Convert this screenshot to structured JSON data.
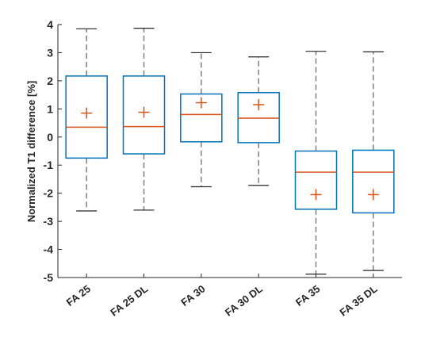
{
  "chart_data": {
    "type": "boxplot",
    "title": "",
    "xlabel": "",
    "ylabel": "Normalized T1 difference [%]",
    "ylim": [
      -5,
      4
    ],
    "yticks": [
      -5,
      -4,
      -3,
      -2,
      -1,
      0,
      1,
      2,
      3,
      4
    ],
    "grid": false,
    "categories": [
      "FA 25",
      "FA 25 DL",
      "FA 30",
      "FA 30 DL",
      "FA 35",
      "FA 35 DL"
    ],
    "boxes": [
      {
        "lower_whisker": -2.63,
        "q1": -0.75,
        "median": 0.35,
        "q3": 2.17,
        "upper_whisker": 3.85,
        "mean": 0.85
      },
      {
        "lower_whisker": -2.6,
        "q1": -0.6,
        "median": 0.37,
        "q3": 2.17,
        "upper_whisker": 3.87,
        "mean": 0.88
      },
      {
        "lower_whisker": -1.77,
        "q1": -0.17,
        "median": 0.8,
        "q3": 1.53,
        "upper_whisker": 3.0,
        "mean": 1.22
      },
      {
        "lower_whisker": -1.72,
        "q1": -0.2,
        "median": 0.67,
        "q3": 1.58,
        "upper_whisker": 2.85,
        "mean": 1.15
      },
      {
        "lower_whisker": -4.88,
        "q1": -2.57,
        "median": -1.25,
        "q3": -0.5,
        "upper_whisker": 3.05,
        "mean": -2.05
      },
      {
        "lower_whisker": -4.75,
        "q1": -2.7,
        "median": -1.25,
        "q3": -0.47,
        "upper_whisker": 3.03,
        "mean": -2.05
      }
    ],
    "colors": {
      "box": "#0072BD",
      "median": "#D95319",
      "mean_marker": "#D95319",
      "whisker": "#808080",
      "axis": "#262626"
    },
    "mean_marker_symbol": "+"
  }
}
